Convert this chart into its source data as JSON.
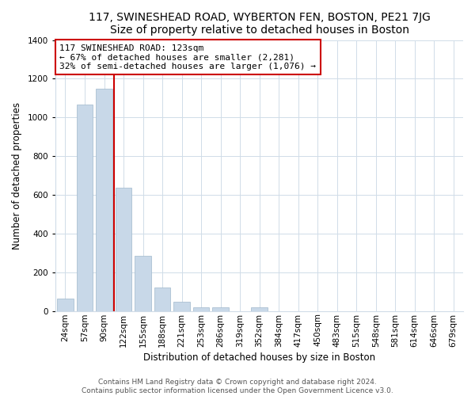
{
  "title": "117, SWINESHEAD ROAD, WYBERTON FEN, BOSTON, PE21 7JG",
  "subtitle": "Size of property relative to detached houses in Boston",
  "xlabel": "Distribution of detached houses by size in Boston",
  "ylabel": "Number of detached properties",
  "bar_labels": [
    "24sqm",
    "57sqm",
    "90sqm",
    "122sqm",
    "155sqm",
    "188sqm",
    "221sqm",
    "253sqm",
    "286sqm",
    "319sqm",
    "352sqm",
    "384sqm",
    "417sqm",
    "450sqm",
    "483sqm",
    "515sqm",
    "548sqm",
    "581sqm",
    "614sqm",
    "646sqm",
    "679sqm"
  ],
  "bar_heights": [
    65,
    1065,
    1150,
    635,
    285,
    120,
    48,
    20,
    20,
    0,
    20,
    0,
    0,
    0,
    0,
    0,
    0,
    0,
    0,
    0,
    0
  ],
  "bar_color": "#c8d8e8",
  "bar_edge_color": "#a0b8cc",
  "property_line_color": "#cc0000",
  "annotation_line1": "117 SWINESHEAD ROAD: 123sqm",
  "annotation_line2": "← 67% of detached houses are smaller (2,281)",
  "annotation_line3": "32% of semi-detached houses are larger (1,076) →",
  "annotation_box_color": "#ffffff",
  "annotation_box_edge": "#cc0000",
  "ylim": [
    0,
    1400
  ],
  "yticks": [
    0,
    200,
    400,
    600,
    800,
    1000,
    1200,
    1400
  ],
  "footer_line1": "Contains HM Land Registry data © Crown copyright and database right 2024.",
  "footer_line2": "Contains public sector information licensed under the Open Government Licence v3.0.",
  "title_fontsize": 10,
  "axis_label_fontsize": 8.5,
  "tick_fontsize": 7.5,
  "annot_fontsize": 8,
  "footer_fontsize": 6.5
}
